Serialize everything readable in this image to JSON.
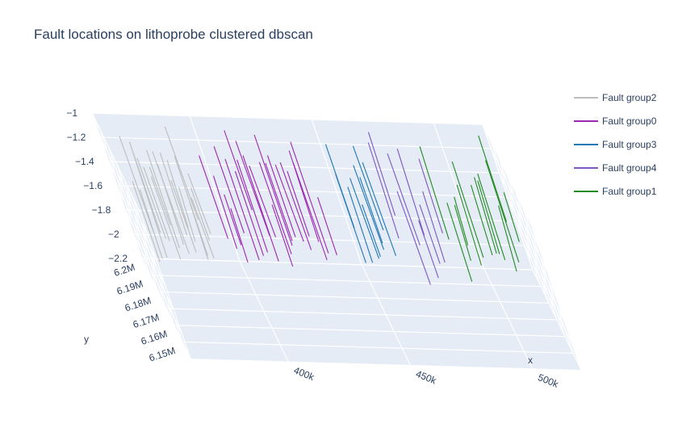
{
  "chart_data": {
    "type": "scatter3d-lines",
    "title": "Fault locations on lithoprobe clustered dbscan",
    "axes": {
      "x": {
        "label": "x",
        "range": [
          360000,
          520000
        ],
        "ticks": [
          400000,
          450000,
          500000
        ],
        "tick_labels": [
          "400k",
          "450k",
          "500k"
        ]
      },
      "y": {
        "label": "y",
        "range": [
          6140000,
          6200000
        ],
        "ticks": [
          6150000,
          6160000,
          6170000,
          6180000,
          6190000,
          6200000
        ],
        "tick_labels": [
          "6.15M",
          "6.16M",
          "6.17M",
          "6.18M",
          "6.19M",
          "6.2M"
        ]
      },
      "z": {
        "label": "",
        "range": [
          -2.2,
          -1
        ],
        "ticks": [
          -2.2,
          -2,
          -1.8,
          -1.6,
          -1.4,
          -1.2,
          -1
        ],
        "tick_labels": [
          "−2.2",
          "−2",
          "−1.8",
          "−1.6",
          "−1.4",
          "−1.2",
          "−1"
        ]
      }
    },
    "background": "#e5ecf6",
    "grid": true,
    "legend_position": "right",
    "series": [
      {
        "name": "Fault group2",
        "color": "#bdbdbd",
        "count": 22,
        "x_range": [
          365000,
          392000
        ],
        "dx": [
          -0.005,
          0.006
        ],
        "dz": [
          -0.15,
          0.5
        ]
      },
      {
        "name": "Fault group0",
        "color": "#9c27b0",
        "count": 24,
        "x_range": [
          397000,
          440000
        ],
        "dx": [
          -0.005,
          0.005
        ],
        "dz": [
          -0.1,
          0.4
        ]
      },
      {
        "name": "Fault group3",
        "color": "#1f77b4",
        "count": 9,
        "x_range": [
          449000,
          466000
        ],
        "dx": [
          -0.004,
          0.004
        ],
        "dz": [
          -0.1,
          0.4
        ]
      },
      {
        "name": "Fault group4",
        "color": "#7e57c2",
        "count": 9,
        "x_range": [
          468000,
          488000
        ],
        "dx": [
          -0.004,
          0.008
        ],
        "dz": [
          -0.3,
          0.4
        ]
      },
      {
        "name": "Fault group1",
        "color": "#228b22",
        "count": 14,
        "x_range": [
          488000,
          520000
        ],
        "dx": [
          0.004,
          0.012
        ],
        "dz": [
          -0.5,
          0.4
        ]
      }
    ],
    "legend_order": [
      "Fault group2",
      "Fault group0",
      "Fault group3",
      "Fault group4",
      "Fault group1"
    ]
  }
}
